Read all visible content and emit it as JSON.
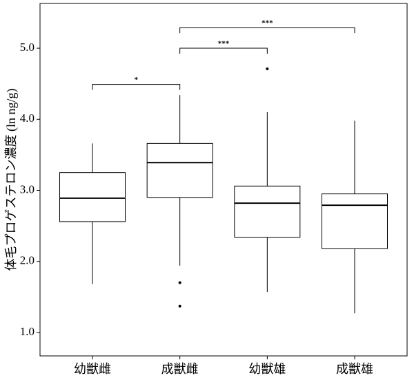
{
  "chart_data": {
    "type": "box",
    "y_label": "体毛プロゲステロン濃度 (ln ng/g)",
    "categories": [
      "幼獣雌",
      "成獣雌",
      "幼獣雄",
      "成獣雄"
    ],
    "boxes": [
      {
        "whisker_low": 1.68,
        "q1": 2.56,
        "median": 2.89,
        "q3": 3.25,
        "whisker_high": 3.66,
        "outliers": []
      },
      {
        "whisker_low": 1.94,
        "q1": 2.9,
        "median": 3.39,
        "q3": 3.66,
        "whisker_high": 4.34,
        "outliers": [
          1.7,
          1.37
        ]
      },
      {
        "whisker_low": 1.57,
        "q1": 2.34,
        "median": 2.82,
        "q3": 3.06,
        "whisker_high": 4.1,
        "outliers": [
          4.71
        ]
      },
      {
        "whisker_low": 1.27,
        "q1": 2.18,
        "median": 2.79,
        "q3": 2.95,
        "whisker_high": 3.98,
        "outliers": []
      }
    ],
    "annotations": [
      {
        "text": "*",
        "y": 4.49,
        "between": [
          "幼獣雌",
          "成獣雌"
        ]
      },
      {
        "text": "***",
        "y": 5.0,
        "between": [
          "成獣雌",
          "幼獣雄"
        ]
      },
      {
        "text": "***",
        "y": 5.29,
        "between": [
          "成獣雌",
          "成獣雄"
        ]
      }
    ],
    "color": "#000000",
    "ylim": [
      0.67,
      5.63
    ],
    "yticks": [
      {
        "value": 1,
        "label": "1.0"
      },
      {
        "value": 2,
        "label": "2.0"
      },
      {
        "value": 3,
        "label": "3.0"
      },
      {
        "value": 4,
        "label": "4.0"
      },
      {
        "value": 5,
        "label": "5.0"
      }
    ],
    "grid": false
  }
}
